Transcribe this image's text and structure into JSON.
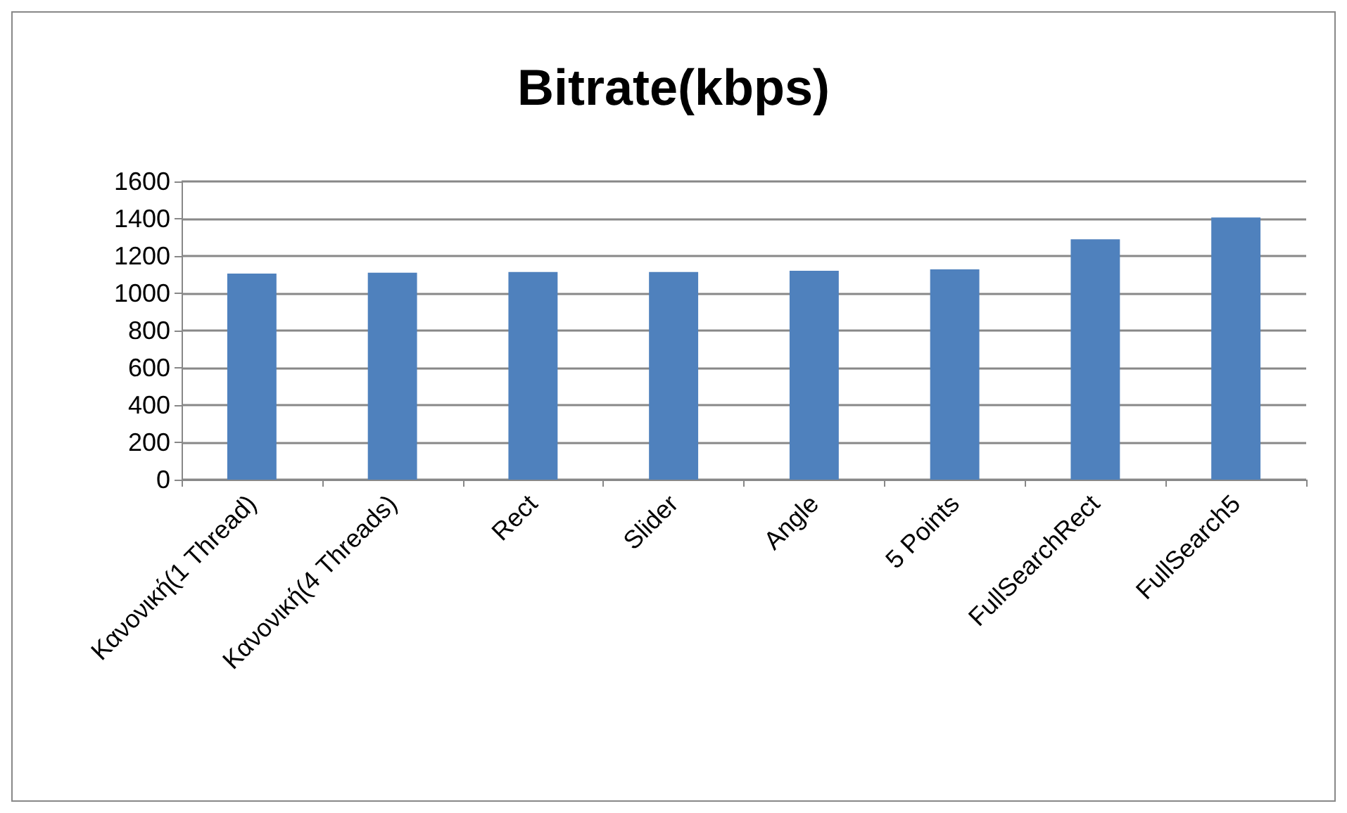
{
  "chart_data": {
    "type": "bar",
    "title": "Bitrate(kbps)",
    "categories": [
      "Κανονική(1 Thread)",
      "Κανονική(4 Threads)",
      "Rect",
      "Slider",
      "Angle",
      "5 Points",
      "FullSearchRect",
      "FullSearch5"
    ],
    "values": [
      1106,
      1110,
      1114,
      1114,
      1121,
      1128,
      1290,
      1407
    ],
    "color": "#4f81bd",
    "ylim": [
      0,
      1600
    ],
    "yticks": [
      0,
      200,
      400,
      600,
      800,
      1000,
      1200,
      1400,
      1600
    ],
    "grid": "y"
  }
}
